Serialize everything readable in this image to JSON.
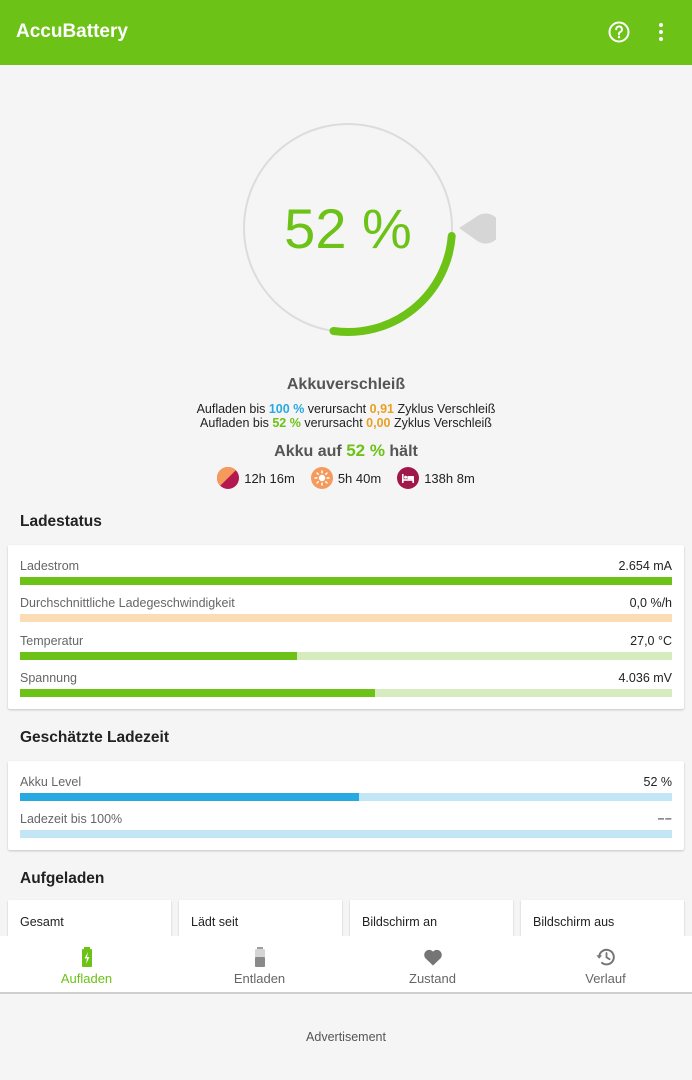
{
  "app": {
    "title": "AccuBattery",
    "accent": "#6cc217"
  },
  "toolbar": {
    "icons": [
      "help-circle-icon",
      "more-vert-icon"
    ]
  },
  "gauge": {
    "value_label": "52 %",
    "level": 0.52
  },
  "wear": {
    "title": "Akkuverschleiß",
    "line1": {
      "prefix": "Aufladen bis",
      "percent": "100 %",
      "middle": "verursacht",
      "cycles": "0,91",
      "suffix": "Zyklus Verschleiß"
    },
    "line2": {
      "prefix": "Aufladen bis",
      "percent": "52 %",
      "middle": "verursacht",
      "cycles": "0,00",
      "suffix": "Zyklus Verschleiß"
    }
  },
  "holds": {
    "prefix": "Akku auf",
    "percent": "52 %",
    "suffix": "hält"
  },
  "durations": [
    {
      "icon": "mixed-usage-icon",
      "value": "12h 16m"
    },
    {
      "icon": "screen-on-sun-icon",
      "value": "5h 40m"
    },
    {
      "icon": "sleep-bed-icon",
      "value": "138h 8m"
    }
  ],
  "charging_status": {
    "title": "Ladestatus",
    "rows": [
      {
        "label": "Ladestrom",
        "value": "2.654 mA",
        "fraction": 1.0,
        "fill_color": "#6cc217",
        "track_color": "#d6ecbf"
      },
      {
        "label": "Durchschnittliche Ladegeschwindigkeit",
        "value": "0,0 %/h",
        "fraction": 0.0,
        "fill_color": "#f5a623",
        "track_color": "#fbdcb4"
      },
      {
        "label": "Temperatur",
        "value": "27,0 °C",
        "fraction": 0.425,
        "fill_color": "#6cc217",
        "track_color": "#d6ecbf"
      },
      {
        "label": "Spannung",
        "value": "4.036 mV",
        "fraction": 0.545,
        "fill_color": "#6cc217",
        "track_color": "#d6ecbf"
      }
    ]
  },
  "estimated": {
    "title": "Geschätzte Ladezeit",
    "rows": [
      {
        "label": "Akku Level",
        "value": "52 %",
        "fraction": 0.52,
        "fill_color": "#29a9e1",
        "track_color": "#c3e6f7"
      },
      {
        "label": "Ladezeit bis 100%",
        "value": "−−",
        "fraction": 0.0,
        "fill_color": "#29a9e1",
        "track_color": "#c3e6f7"
      }
    ]
  },
  "charged": {
    "title": "Aufgeladen",
    "cells": [
      "Gesamt",
      "Lädt seit",
      "Bildschirm an",
      "Bildschirm aus"
    ]
  },
  "nav": [
    {
      "label": "Aufladen",
      "icon": "battery-charging-icon",
      "active": true
    },
    {
      "label": "Entladen",
      "icon": "battery-icon",
      "active": false
    },
    {
      "label": "Zustand",
      "icon": "heart-icon",
      "active": false
    },
    {
      "label": "Verlauf",
      "icon": "history-icon",
      "active": false
    }
  ],
  "ad": {
    "label": "Advertisement"
  }
}
